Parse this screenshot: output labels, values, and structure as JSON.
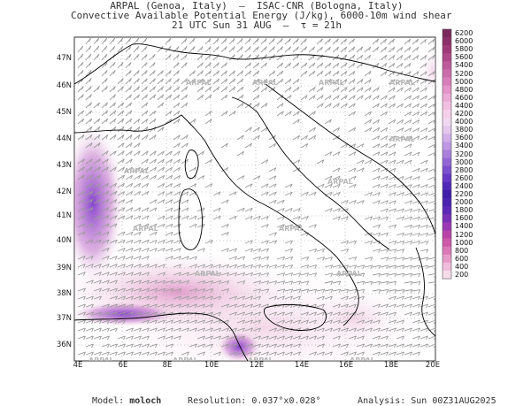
{
  "header": {
    "line1": "ARPAL (Genoa, Italy)  —  ISAC-CNR (Bologna, Italy)",
    "line2": "Convective Available Potential Energy (J/kg), 6000-10m wind shear",
    "line3": "21 UTC Sun 31 AUG  —  τ = 21h"
  },
  "map": {
    "lat_labels": [
      "47N",
      "46N",
      "45N",
      "44N",
      "43N",
      "42N",
      "41N",
      "40N",
      "39N",
      "38N",
      "37N",
      "36N"
    ],
    "lon_labels": [
      "4E",
      "6E",
      "8E",
      "10E",
      "12E",
      "14E",
      "16E",
      "18E",
      "20E"
    ],
    "watermark": "ARPAL",
    "colors": {
      "land_line": "#000000",
      "wind_barb": "#9a9a9a",
      "grid": "#9a9a9a"
    }
  },
  "colorbar": {
    "levels": [
      "6200",
      "6000",
      "5800",
      "5600",
      "5400",
      "5200",
      "5000",
      "4800",
      "4600",
      "4400",
      "4200",
      "4000",
      "3800",
      "3600",
      "3400",
      "3200",
      "3000",
      "2800",
      "2600",
      "2400",
      "2200",
      "2000",
      "1800",
      "1600",
      "1400",
      "1200",
      "1000",
      "800",
      "600",
      "400",
      "200"
    ],
    "colors": [
      "#7a2a5a",
      "#8c2f68",
      "#9e3a78",
      "#ae4a8a",
      "#bd5b9b",
      "#cb6cab",
      "#d87fbb",
      "#e394c9",
      "#ecaad6",
      "#f2bfe2",
      "#f6d0ea",
      "#f0d8f0",
      "#e4c8ee",
      "#d2b0ea",
      "#bf98e4",
      "#a97fdc",
      "#9366d4",
      "#7c4fcc",
      "#6638c4",
      "#5028b8",
      "#3f1ea8",
      "#4a24b0",
      "#5d2ab8",
      "#7a30b8",
      "#9a38b4",
      "#b844a8",
      "#cc5aa8",
      "#da78b8",
      "#e69ac8",
      "#f0bcdc",
      "#f6dbe9"
    ]
  },
  "footer": {
    "model_label": "Model:",
    "model_value": "moloch",
    "resolution_label": "Resolution:",
    "resolution_value": "0.037°x0.028°",
    "analysis_label": "Analysis:",
    "analysis_value": "Sun 00Z31AUG2025"
  }
}
